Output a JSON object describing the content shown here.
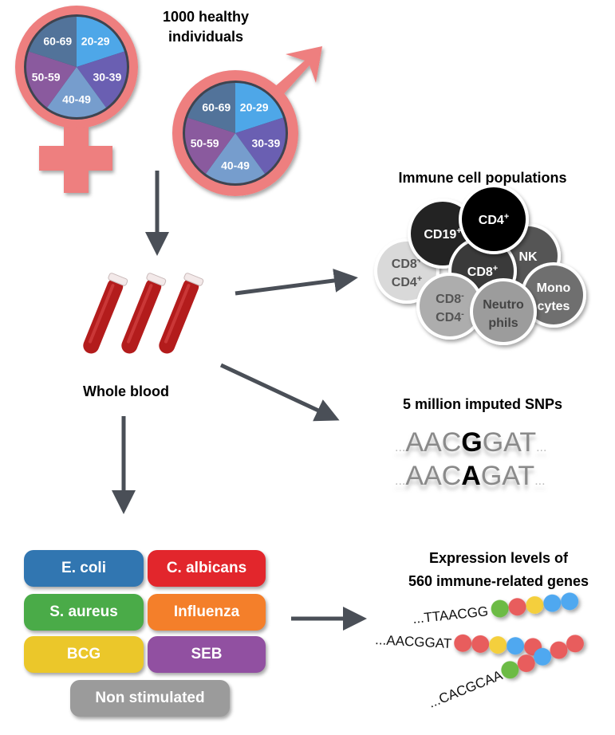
{
  "cohort": {
    "title_line1": "1000 healthy",
    "title_line2": "individuals",
    "age_groups": [
      "20-29",
      "30-39",
      "40-49",
      "50-59",
      "60-69"
    ],
    "age_colors": [
      "#4ea7e8",
      "#6a5fb2",
      "#769dcd",
      "#8a5a9e",
      "#52739a"
    ],
    "symbol_color": "#ee7f7f"
  },
  "blood": {
    "label": "Whole blood",
    "tube_color": "#b31c1c"
  },
  "immune": {
    "title": "Immune cell populations",
    "cells": [
      {
        "l1": "CD8",
        "s1": "+",
        "l2": "CD4",
        "s2": "+",
        "color": "#d9d9d9",
        "text": "#555555"
      },
      {
        "l1": "CD19",
        "s1": "+",
        "color": "#232323",
        "text": "#ffffff"
      },
      {
        "l1": "NK",
        "color": "#555555",
        "text": "#ffffff"
      },
      {
        "l1": "CD8",
        "s1": "+",
        "color": "#3a3a3a",
        "text": "#ffffff"
      },
      {
        "l1": "CD4",
        "s1": "+",
        "color": "#000000",
        "text": "#ffffff"
      },
      {
        "l1": "CD8",
        "s1": "-",
        "l2": "CD4",
        "s2": "-",
        "color": "#adadad",
        "text": "#555555"
      },
      {
        "l1": "Mono",
        "l2": "cytes",
        "color": "#6f6f6f",
        "text": "#ffffff"
      },
      {
        "l1": "Neutro",
        "l2": "phils",
        "color": "#9c9c9c",
        "text": "#444444"
      }
    ]
  },
  "snps": {
    "title": "5 million imputed SNPs",
    "seq1": {
      "pre": "AAC",
      "var": "G",
      "post": "GAT"
    },
    "seq2": {
      "pre": "AAC",
      "var": "A",
      "post": "GAT"
    },
    "ellipsis": "..."
  },
  "stimuli": [
    {
      "label": "E. coli",
      "color": "#3176b1"
    },
    {
      "label": "C. albicans",
      "color": "#e2262c"
    },
    {
      "label": "S. aureus",
      "color": "#4aab48"
    },
    {
      "label": "Influenza",
      "color": "#f47f2a"
    },
    {
      "label": "BCG",
      "color": "#ebc72a"
    },
    {
      "label": "SEB",
      "color": "#9150a1"
    },
    {
      "label": "Non stimulated",
      "color": "#9b9b9b"
    }
  ],
  "expression": {
    "title_line1": "Expression levels of",
    "title_line2": "560 immune-related genes",
    "reads": [
      {
        "seq": "...TTAACGG",
        "beads": [
          "#6cbb45",
          "#e85d5d",
          "#f4cf3c",
          "#4fa8f0",
          "#4fa8f0"
        ]
      },
      {
        "seq": "...AACGGAT",
        "beads": [
          "#e85d5d",
          "#e85d5d",
          "#f4cf3c",
          "#4fa8f0",
          "#e85d5d"
        ]
      },
      {
        "seq": "...CACGCAA",
        "beads": [
          "#6cbb45",
          "#e85d5d",
          "#4fa8f0",
          "#e85d5d",
          "#e85d5d"
        ]
      }
    ]
  }
}
